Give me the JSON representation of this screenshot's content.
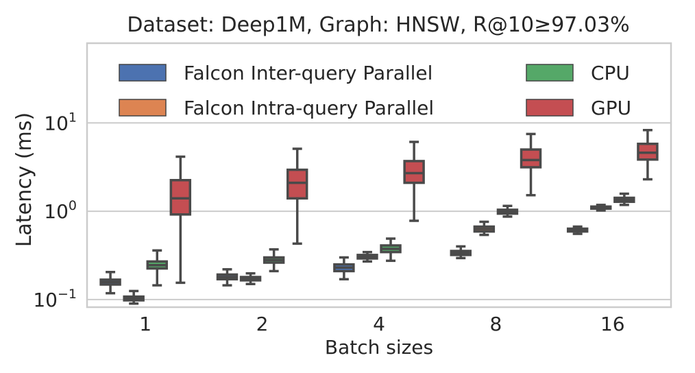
{
  "chart_data": {
    "type": "box",
    "title": "Dataset: Deep1M, Graph: HNSW, R@10≥97.03%",
    "xlabel": "Batch sizes",
    "ylabel": "Latency (ms)",
    "yscale": "log",
    "ylim": [
      0.082,
      80
    ],
    "yticks": [
      {
        "value": 0.1,
        "base": "10",
        "exp": "−1"
      },
      {
        "value": 1,
        "base": "10",
        "exp": "0"
      },
      {
        "value": 10,
        "base": "10",
        "exp": "1"
      }
    ],
    "categories": [
      "1",
      "2",
      "4",
      "8",
      "16"
    ],
    "grid": true,
    "legend": {
      "placement": "top",
      "columns": 2
    },
    "series": [
      {
        "name": "Falcon Inter-query Parallel",
        "color": "#4c72b0",
        "boxes": [
          {
            "whislo": 0.118,
            "q1": 0.148,
            "med": 0.158,
            "q3": 0.168,
            "whishi": 0.205
          },
          {
            "whislo": 0.145,
            "q1": 0.17,
            "med": 0.18,
            "q3": 0.192,
            "whishi": 0.22
          },
          {
            "whislo": 0.17,
            "q1": 0.21,
            "med": 0.23,
            "q3": 0.25,
            "whishi": 0.3
          },
          {
            "whislo": 0.295,
            "q1": 0.32,
            "med": 0.338,
            "q3": 0.355,
            "whishi": 0.4
          },
          {
            "whislo": 0.555,
            "q1": 0.59,
            "med": 0.615,
            "q3": 0.635,
            "whishi": 0.67
          }
        ]
      },
      {
        "name": "Falcon Intra-query Parallel",
        "color": "#dd8452",
        "boxes": [
          {
            "whislo": 0.09,
            "q1": 0.098,
            "med": 0.103,
            "q3": 0.108,
            "whishi": 0.125
          },
          {
            "whislo": 0.15,
            "q1": 0.165,
            "med": 0.172,
            "q3": 0.18,
            "whishi": 0.198
          },
          {
            "whislo": 0.27,
            "q1": 0.292,
            "med": 0.305,
            "q3": 0.32,
            "whishi": 0.345
          },
          {
            "whislo": 0.54,
            "q1": 0.59,
            "med": 0.63,
            "q3": 0.67,
            "whishi": 0.76
          },
          {
            "whislo": 1.02,
            "q1": 1.07,
            "med": 1.1,
            "q3": 1.13,
            "whishi": 1.18
          }
        ]
      },
      {
        "name": "CPU",
        "color": "#55a868",
        "boxes": [
          {
            "whislo": 0.145,
            "q1": 0.225,
            "med": 0.245,
            "q3": 0.27,
            "whishi": 0.36
          },
          {
            "whislo": 0.21,
            "q1": 0.262,
            "med": 0.28,
            "q3": 0.3,
            "whishi": 0.37
          },
          {
            "whislo": 0.275,
            "q1": 0.345,
            "med": 0.375,
            "q3": 0.41,
            "whishi": 0.49
          },
          {
            "whislo": 0.87,
            "q1": 0.94,
            "med": 0.99,
            "q3": 1.04,
            "whishi": 1.15
          },
          {
            "whislo": 1.18,
            "q1": 1.28,
            "med": 1.35,
            "q3": 1.42,
            "whishi": 1.58
          }
        ]
      },
      {
        "name": "GPU",
        "color": "#c44e52",
        "boxes": [
          {
            "whislo": 0.155,
            "q1": 0.92,
            "med": 1.4,
            "q3": 2.25,
            "whishi": 4.15
          },
          {
            "whislo": 0.43,
            "q1": 1.4,
            "med": 2.1,
            "q3": 2.95,
            "whishi": 5.1
          },
          {
            "whislo": 0.78,
            "q1": 2.1,
            "med": 2.7,
            "q3": 3.7,
            "whishi": 6.1
          },
          {
            "whislo": 1.52,
            "q1": 3.15,
            "med": 3.8,
            "q3": 5.0,
            "whishi": 7.5
          },
          {
            "whislo": 2.3,
            "q1": 3.85,
            "med": 4.6,
            "q3": 5.8,
            "whishi": 8.3
          }
        ]
      }
    ]
  }
}
